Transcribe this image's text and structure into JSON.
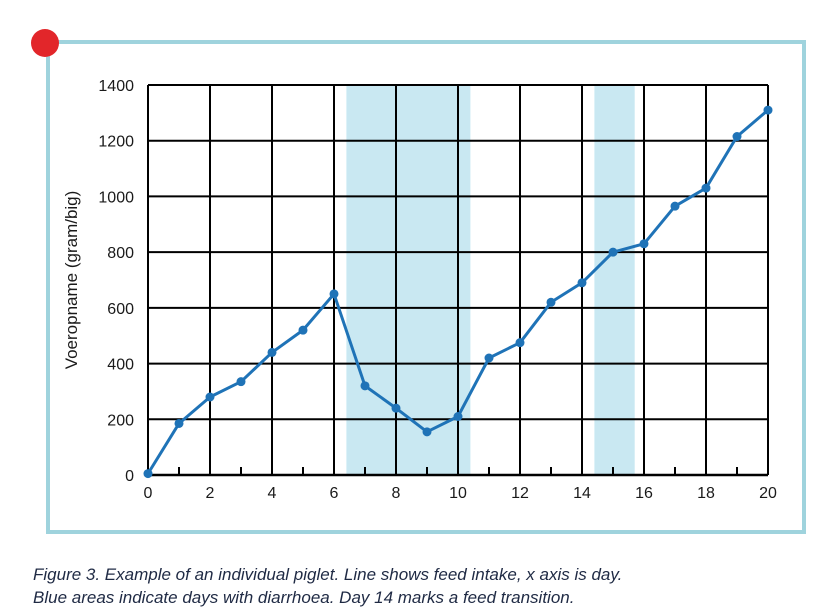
{
  "chart_data": {
    "type": "line",
    "title": "",
    "xlabel": "",
    "ylabel": "Voeropname (gram/big)",
    "xlim": [
      0,
      20
    ],
    "ylim": [
      0,
      1400
    ],
    "x_ticks": [
      0,
      2,
      4,
      6,
      8,
      10,
      12,
      14,
      16,
      18,
      20
    ],
    "y_ticks": [
      0,
      200,
      400,
      600,
      800,
      1000,
      1200,
      1400
    ],
    "grid": true,
    "shaded_regions": [
      {
        "x_start": 6.4,
        "x_end": 10.4
      },
      {
        "x_start": 14.4,
        "x_end": 15.7
      }
    ],
    "series": [
      {
        "x": [
          0,
          1,
          2,
          3,
          4,
          5,
          6,
          7,
          8,
          9,
          10,
          11,
          12,
          13,
          14,
          15,
          16,
          17,
          18,
          19,
          20
        ],
        "values": [
          5,
          185,
          280,
          335,
          440,
          520,
          650,
          320,
          240,
          155,
          210,
          420,
          475,
          620,
          690,
          800,
          830,
          965,
          1030,
          1215,
          1310
        ]
      }
    ]
  },
  "colors": {
    "line": "#1f73b7",
    "shade": "#c9e8f2",
    "frame": "#9fd3dd",
    "marker_dot": "#e2262a",
    "grid": "#000000"
  },
  "caption": {
    "line1": "Figure 3. Example of an individual piglet. Line shows feed intake, x axis is day.",
    "line2": "Blue areas indicate days with diarrhoea. Day 14 marks a feed transition."
  }
}
